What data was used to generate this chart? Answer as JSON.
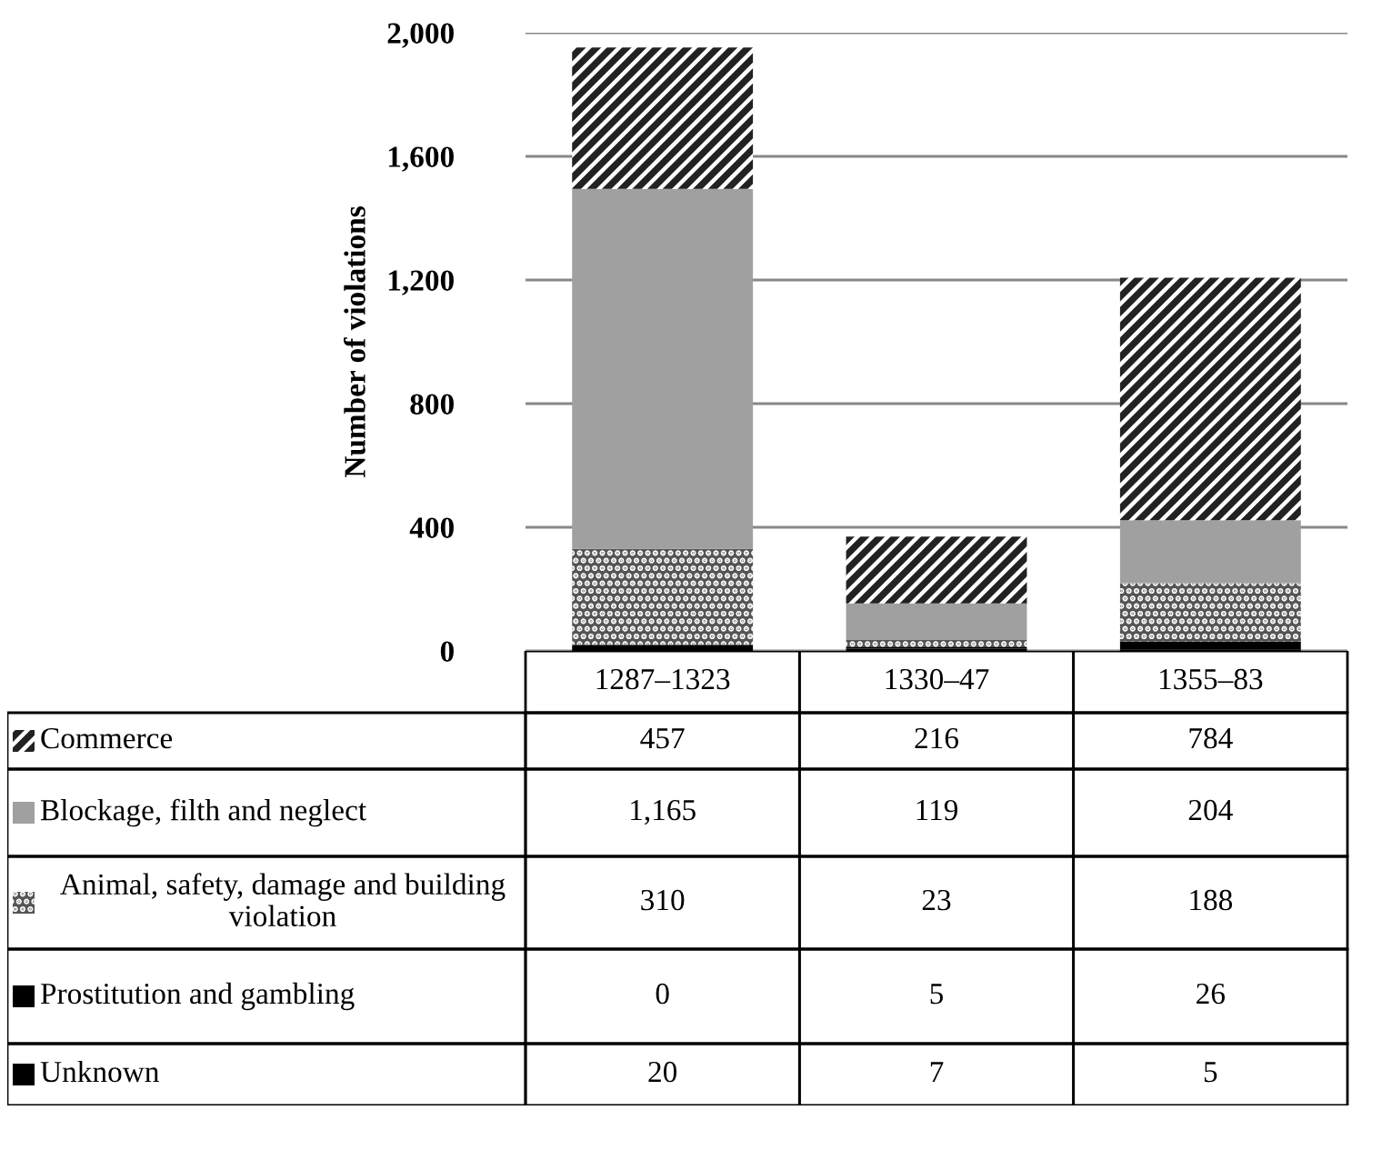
{
  "chart_data": {
    "type": "bar",
    "stacked": true,
    "ylabel": "Number of violations",
    "categories": [
      "1287–1323",
      "1330–47",
      "1355–83"
    ],
    "series": [
      {
        "name": "Unknown",
        "color": "#000000",
        "values": [
          20,
          7,
          5
        ],
        "value_labels": [
          "20",
          "7",
          "5"
        ]
      },
      {
        "name": "Prostitution and gambling",
        "color": "#000000",
        "values": [
          0,
          5,
          26
        ],
        "value_labels": [
          "0",
          "5",
          "26"
        ]
      },
      {
        "name": "Animal, safety, damage and building violation",
        "color": "#555555",
        "values": [
          310,
          23,
          188
        ],
        "value_labels": [
          "310",
          "23",
          "188"
        ]
      },
      {
        "name": "Blockage, filth and neglect",
        "color": "#a0a0a0",
        "values": [
          1165,
          119,
          204
        ],
        "value_labels": [
          "1,165",
          "119",
          "204"
        ]
      },
      {
        "name": "Commerce",
        "color": "#222222",
        "values": [
          457,
          216,
          784
        ],
        "value_labels": [
          "457",
          "216",
          "784"
        ]
      }
    ],
    "ylim": [
      0,
      2000
    ],
    "yticks": [
      0,
      {
        "value": 400,
        "label": "400"
      },
      {
        "value": 800,
        "label": "800"
      },
      {
        "value": 1200,
        "label": "1,200"
      },
      {
        "value": 1600,
        "label": "1,600"
      },
      {
        "value": 2000,
        "label": "2,000"
      }
    ],
    "grid": "y",
    "legend": "bottom"
  }
}
